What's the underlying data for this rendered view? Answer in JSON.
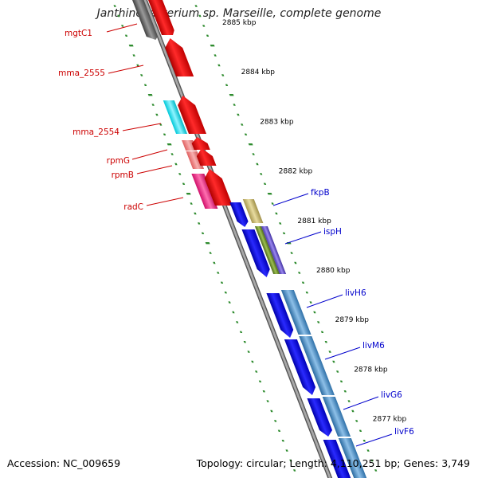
{
  "title": "Janthinobacterium sp. Marseille, complete genome",
  "accession_label": "Accession: NC_009659",
  "summary": {
    "topology": "Topology: circular;",
    "length": "Length: 4,110,251 bp;",
    "genes": "Genes: 3,749"
  },
  "colors": {
    "backbone": "#8a8a8a",
    "tick": "#2e8b2e",
    "left_label": "#cc0000",
    "right_label": "#0000cc",
    "ruler_text": "#000000"
  },
  "scale_labels": [
    "2885 kbp",
    "2884 kbp",
    "2883 kbp",
    "2882 kbp",
    "2881 kbp",
    "2880 kbp",
    "2879 kbp",
    "2878 kbp",
    "2877 kbp"
  ],
  "left_genes": [
    "mgtC1",
    "mma_2555",
    "mma_2554",
    "rpmG",
    "rpmB",
    "radC"
  ],
  "right_genes": [
    "fkpB",
    "ispH",
    "livH6",
    "livM6",
    "livG6",
    "livF6"
  ]
}
